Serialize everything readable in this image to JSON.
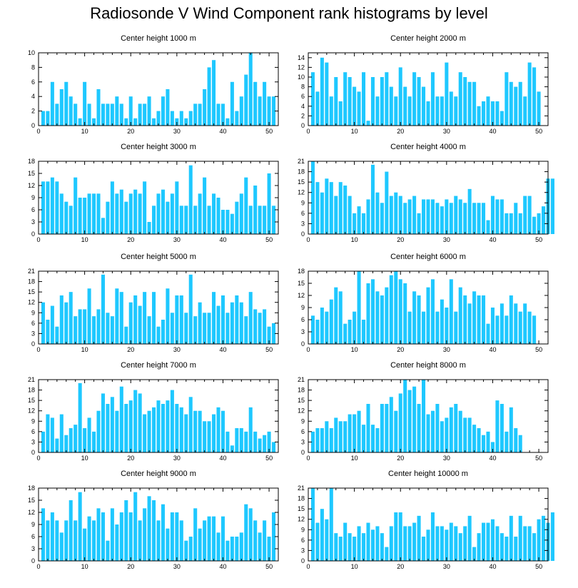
{
  "title": "Radiosonde V Wind Component rank histograms by level",
  "colors": {
    "bar": "#1ec8ff",
    "axis": "#000000",
    "background": "#ffffff"
  },
  "chart_data": [
    {
      "type": "bar",
      "title": "Center height 1000 m",
      "xlim": [
        0,
        52
      ],
      "ylim": [
        0,
        10
      ],
      "xticks": [
        0,
        10,
        20,
        30,
        40,
        50
      ],
      "yticks": [
        0,
        2,
        4,
        6,
        8,
        10
      ],
      "values": [
        2,
        2,
        6,
        3,
        5,
        6,
        4,
        3,
        1,
        6,
        3,
        1,
        5,
        3,
        3,
        3,
        4,
        3,
        1,
        4,
        1,
        3,
        3,
        4,
        1,
        2,
        4,
        5,
        2,
        1,
        2,
        1,
        2,
        3,
        3,
        5,
        8,
        9,
        3,
        3,
        1,
        6,
        2,
        4,
        7,
        10,
        6,
        4,
        6,
        4,
        4
      ]
    },
    {
      "type": "bar",
      "title": "Center height 2000 m",
      "xlim": [
        0,
        52
      ],
      "ylim": [
        0,
        15
      ],
      "xticks": [
        0,
        10,
        20,
        30,
        40,
        50
      ],
      "yticks": [
        0,
        2,
        4,
        6,
        8,
        10,
        12,
        14
      ],
      "values": [
        11,
        7,
        14,
        13,
        6,
        10,
        5,
        11,
        10,
        8,
        7,
        11,
        1,
        10,
        6,
        10,
        11,
        8,
        6,
        12,
        8,
        6,
        11,
        10,
        8,
        5,
        11,
        6,
        6,
        13,
        7,
        6,
        11,
        10,
        9,
        9,
        4,
        5,
        6,
        5,
        5,
        3,
        11,
        9,
        8,
        9,
        6,
        13,
        12,
        7
      ]
    },
    {
      "type": "bar",
      "title": "Center height 3000 m",
      "xlim": [
        0,
        52
      ],
      "ylim": [
        0,
        18
      ],
      "xticks": [
        0,
        10,
        20,
        30,
        40,
        50
      ],
      "yticks": [
        0,
        3,
        6,
        9,
        12,
        15,
        18
      ],
      "values": [
        13,
        13,
        14,
        13,
        10,
        8,
        7,
        14,
        9,
        9,
        10,
        10,
        10,
        4,
        8,
        13,
        10,
        11,
        8,
        10,
        11,
        10,
        13,
        3,
        7,
        10,
        11,
        8,
        10,
        13,
        7,
        7,
        17,
        7,
        10,
        14,
        7,
        10,
        9,
        6,
        6,
        5,
        8,
        10,
        14,
        7,
        12,
        7,
        7,
        15,
        7
      ]
    },
    {
      "type": "bar",
      "title": "Center height 4000 m",
      "xlim": [
        0,
        52
      ],
      "ylim": [
        0,
        21
      ],
      "xticks": [
        0,
        10,
        20,
        30,
        40,
        50
      ],
      "yticks": [
        0,
        3,
        6,
        9,
        12,
        15,
        18,
        21
      ],
      "values": [
        21,
        15,
        12,
        16,
        15,
        11,
        15,
        14,
        11,
        6,
        8,
        6,
        10,
        20,
        12,
        9,
        18,
        11,
        12,
        11,
        9,
        10,
        11,
        6,
        10,
        10,
        10,
        9,
        8,
        10,
        9,
        11,
        10,
        9,
        13,
        9,
        9,
        9,
        4,
        11,
        10,
        10,
        6,
        6,
        9,
        6,
        11,
        11,
        5,
        6,
        8,
        16,
        16
      ]
    },
    {
      "type": "bar",
      "title": "Center height 5000 m",
      "xlim": [
        0,
        52
      ],
      "ylim": [
        0,
        21
      ],
      "xticks": [
        0,
        10,
        20,
        30,
        40,
        50
      ],
      "yticks": [
        0,
        3,
        6,
        9,
        12,
        15,
        18,
        21
      ],
      "values": [
        12,
        7,
        11,
        5,
        14,
        12,
        15,
        8,
        10,
        10,
        16,
        8,
        10,
        20,
        9,
        8,
        16,
        15,
        5,
        12,
        14,
        11,
        15,
        8,
        15,
        5,
        7,
        16,
        9,
        14,
        14,
        9,
        20,
        8,
        12,
        9,
        9,
        15,
        11,
        14,
        9,
        12,
        14,
        12,
        8,
        15,
        10,
        9,
        10,
        5,
        6
      ]
    },
    {
      "type": "bar",
      "title": "Center height 6000 m",
      "xlim": [
        0,
        52
      ],
      "ylim": [
        0,
        18
      ],
      "xticks": [
        0,
        10,
        20,
        30,
        40,
        50
      ],
      "yticks": [
        0,
        3,
        6,
        9,
        12,
        15,
        18
      ],
      "values": [
        7,
        6,
        9,
        8,
        11,
        14,
        13,
        5,
        6,
        8,
        18,
        6,
        15,
        16,
        13,
        12,
        14,
        17,
        18,
        16,
        15,
        8,
        13,
        12,
        8,
        14,
        16,
        8,
        11,
        9,
        16,
        8,
        14,
        12,
        10,
        13,
        12,
        12,
        5,
        9,
        7,
        10,
        7,
        12,
        10,
        8,
        10,
        8,
        7
      ]
    },
    {
      "type": "bar",
      "title": "Center height 7000 m",
      "xlim": [
        0,
        52
      ],
      "ylim": [
        0,
        21
      ],
      "xticks": [
        0,
        10,
        20,
        30,
        40,
        50
      ],
      "yticks": [
        0,
        3,
        6,
        9,
        12,
        15,
        18,
        21
      ],
      "values": [
        6,
        11,
        10,
        4,
        11,
        5,
        7,
        8,
        20,
        7,
        10,
        6,
        12,
        17,
        14,
        16,
        12,
        19,
        14,
        15,
        18,
        17,
        11,
        12,
        13,
        15,
        14,
        15,
        18,
        14,
        13,
        11,
        16,
        12,
        12,
        9,
        9,
        11,
        13,
        12,
        6,
        2,
        7,
        7,
        6,
        13,
        6,
        4,
        5,
        6,
        3
      ]
    },
    {
      "type": "bar",
      "title": "Center height 8000 m",
      "xlim": [
        0,
        52
      ],
      "ylim": [
        0,
        21
      ],
      "xticks": [
        0,
        10,
        20,
        30,
        40,
        50
      ],
      "yticks": [
        0,
        3,
        6,
        9,
        12,
        15,
        18,
        21
      ],
      "values": [
        6,
        7,
        7,
        9,
        7,
        10,
        9,
        9,
        11,
        11,
        12,
        8,
        14,
        8,
        7,
        14,
        14,
        16,
        12,
        17,
        21,
        18,
        19,
        14,
        21,
        11,
        12,
        14,
        9,
        10,
        13,
        14,
        12,
        10,
        10,
        8,
        7,
        5,
        6,
        3,
        15,
        14,
        6,
        13,
        7,
        5
      ]
    },
    {
      "type": "bar",
      "title": "Center height 9000 m",
      "xlim": [
        0,
        52
      ],
      "ylim": [
        0,
        18
      ],
      "xticks": [
        0,
        10,
        20,
        30,
        40,
        50
      ],
      "yticks": [
        0,
        3,
        6,
        9,
        12,
        15,
        18
      ],
      "values": [
        13,
        10,
        12,
        10,
        7,
        10,
        15,
        10,
        17,
        8,
        11,
        10,
        13,
        12,
        5,
        13,
        9,
        12,
        15,
        12,
        17,
        10,
        13,
        16,
        15,
        10,
        14,
        8,
        12,
        12,
        10,
        5,
        6,
        13,
        8,
        10,
        11,
        11,
        7,
        11,
        5,
        6,
        6,
        7,
        14,
        13,
        10,
        7,
        10,
        6,
        12
      ]
    },
    {
      "type": "bar",
      "title": "Center height 10000 m",
      "xlim": [
        0,
        52
      ],
      "ylim": [
        0,
        21
      ],
      "xticks": [
        0,
        10,
        20,
        30,
        40,
        50
      ],
      "yticks": [
        0,
        3,
        6,
        9,
        12,
        15,
        18,
        21
      ],
      "values": [
        21,
        11,
        15,
        12,
        21,
        8,
        7,
        11,
        8,
        7,
        10,
        8,
        11,
        9,
        10,
        8,
        4,
        10,
        14,
        14,
        10,
        10,
        11,
        13,
        7,
        9,
        14,
        10,
        10,
        9,
        11,
        10,
        8,
        10,
        13,
        4,
        8,
        11,
        11,
        12,
        10,
        8,
        7,
        13,
        7,
        13,
        10,
        10,
        8,
        12,
        13,
        11,
        14
      ]
    }
  ]
}
